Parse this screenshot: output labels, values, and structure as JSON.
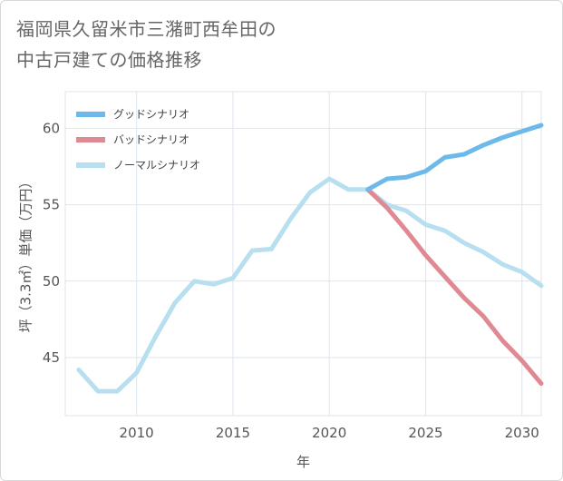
{
  "title_line1": "福岡県久留米市三潴町西牟田の",
  "title_line2": "中古戸建ての価格推移",
  "chart_data": {
    "type": "line",
    "title": "福岡県久留米市三潴町西牟田の中古戸建ての価格推移",
    "xlabel": "年",
    "ylabel": "坪（3.3㎡）単価（万円）",
    "xlim": [
      2006.3,
      2031
    ],
    "ylim": [
      41.2,
      62.4
    ],
    "x_ticks": [
      2010,
      2015,
      2020,
      2025,
      2030
    ],
    "y_ticks": [
      45,
      50,
      55,
      60
    ],
    "grid": true,
    "legend_position": "top-left",
    "series": [
      {
        "name": "グッドシナリオ",
        "color": "#6cb9ea",
        "x": [
          2022,
          2023,
          2024,
          2025,
          2026,
          2027,
          2028,
          2029,
          2030,
          2031
        ],
        "values": [
          56.0,
          56.7,
          56.8,
          57.2,
          58.1,
          58.3,
          58.9,
          59.4,
          59.8,
          60.2
        ]
      },
      {
        "name": "バッドシナリオ",
        "color": "#df8a93",
        "x": [
          2022,
          2023,
          2024,
          2025,
          2026,
          2027,
          2028,
          2029,
          2030,
          2031
        ],
        "values": [
          56.0,
          54.8,
          53.3,
          51.7,
          50.3,
          48.9,
          47.7,
          46.1,
          44.8,
          43.3
        ]
      },
      {
        "name": "ノーマルシナリオ",
        "color": "#b7dff0",
        "x": [
          2007,
          2008,
          2009,
          2010,
          2011,
          2012,
          2013,
          2014,
          2015,
          2016,
          2017,
          2018,
          2019,
          2020,
          2021,
          2022,
          2023,
          2024,
          2025,
          2026,
          2027,
          2028,
          2029,
          2030,
          2031
        ],
        "values": [
          44.2,
          42.8,
          42.8,
          44.0,
          46.4,
          48.6,
          50.0,
          49.8,
          50.2,
          52.0,
          52.1,
          54.1,
          55.8,
          56.7,
          56.0,
          56.0,
          55.0,
          54.6,
          53.7,
          53.3,
          52.5,
          51.9,
          51.1,
          50.6,
          49.7
        ]
      }
    ]
  }
}
